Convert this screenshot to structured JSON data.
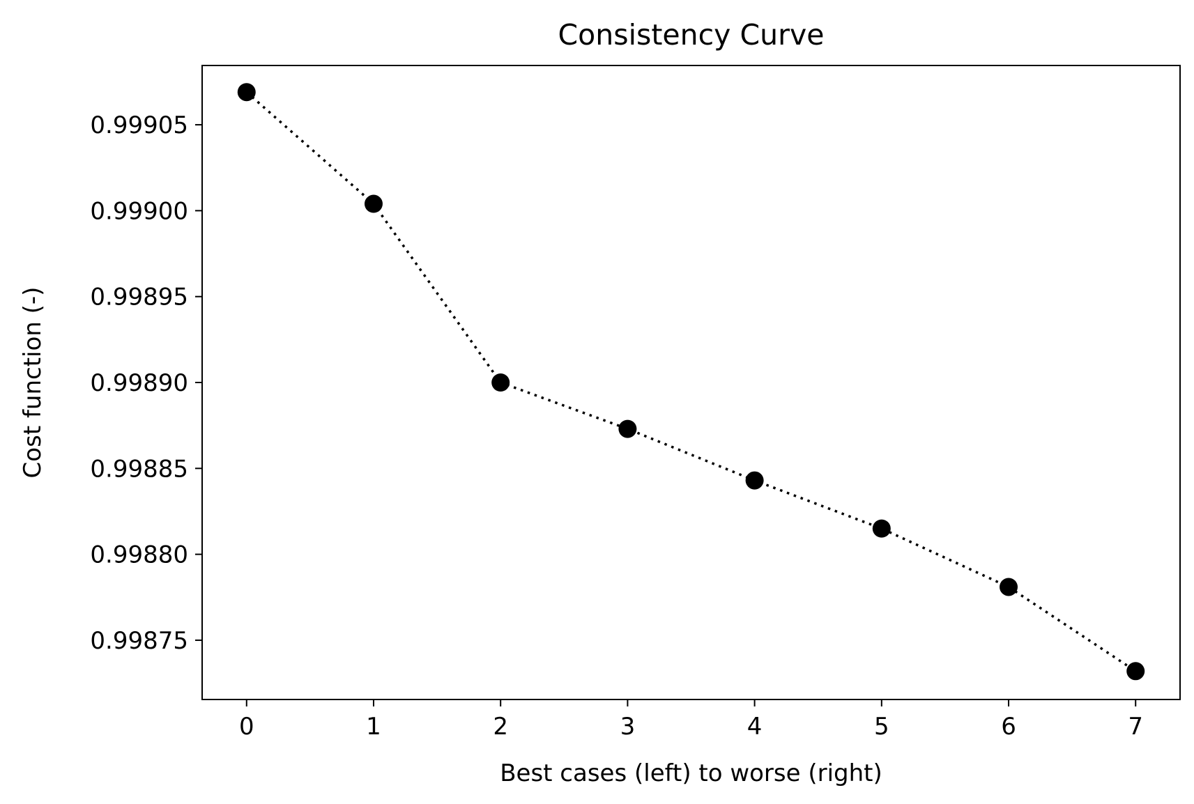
{
  "chart_data": {
    "type": "line",
    "title": "Consistency Curve",
    "xlabel": "Best cases (left) to worse (right)",
    "ylabel": "Cost function (-)",
    "x": [
      0,
      1,
      2,
      3,
      4,
      5,
      6,
      7
    ],
    "series": [
      {
        "values": [
          0.999069,
          0.999004,
          0.9989,
          0.998873,
          0.998843,
          0.998815,
          0.998781,
          0.998732
        ],
        "color": "#000000",
        "line_style": "dotted",
        "marker": "circle"
      }
    ],
    "xlim": [
      -0.35,
      7.35
    ],
    "ylim": [
      0.9987155,
      0.9990845
    ],
    "xticks": [
      0,
      1,
      2,
      3,
      4,
      5,
      6,
      7
    ],
    "xtick_labels": [
      "0",
      "1",
      "2",
      "3",
      "4",
      "5",
      "6",
      "7"
    ],
    "yticks": [
      0.99875,
      0.9988,
      0.99885,
      0.9989,
      0.99895,
      0.999,
      0.99905
    ],
    "ytick_labels": [
      "0.99875",
      "0.99880",
      "0.99885",
      "0.99890",
      "0.99895",
      "0.99900",
      "0.99905"
    ],
    "grid": false,
    "legend": "none"
  }
}
